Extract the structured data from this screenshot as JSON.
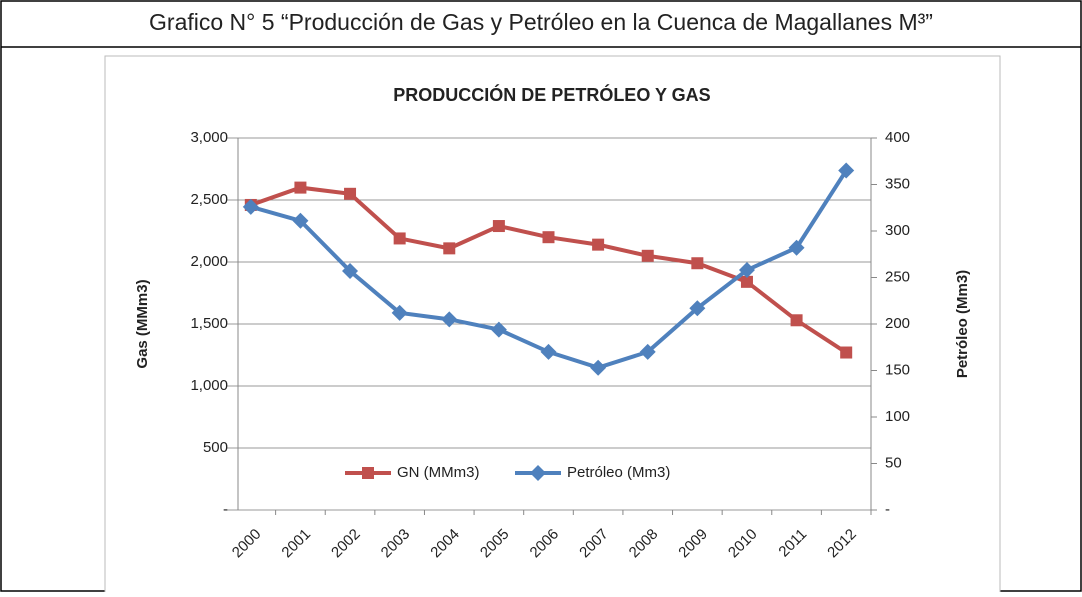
{
  "header": {
    "title": "Grafico N° 5  “Producción de Gas y Petróleo en la Cuenca de Magallanes M³”"
  },
  "chart_data": {
    "type": "line",
    "title": "PRODUCCIÓN DE PETRÓLEO Y GAS",
    "y_label": "Gas (MMm3)",
    "y2_label": "Petróleo (Mm3)",
    "categories": [
      "2000",
      "2001",
      "2002",
      "2003",
      "2004",
      "2005",
      "2006",
      "2007",
      "2008",
      "2009",
      "2010",
      "2011",
      "2012"
    ],
    "series": [
      {
        "name": "GN (MMm3)",
        "color": "#c0504d",
        "marker": "square",
        "values": [
          2460,
          2600,
          2550,
          2190,
          2110,
          2290,
          2200,
          2140,
          2050,
          1990,
          1840,
          1530,
          1270
        ]
      },
      {
        "name": "Petróleo (Mm3)",
        "color": "#4f81bd",
        "marker": "diamond",
        "axis": "y2",
        "values": [
          326,
          311,
          257,
          212,
          205,
          194,
          170,
          153,
          170,
          217,
          258,
          282,
          365
        ]
      }
    ],
    "ylim": [
      0,
      3000
    ],
    "yticks": [
      {
        "value": 0,
        "label": "-"
      },
      500,
      {
        "value": 1000,
        "label": "1,000"
      },
      {
        "value": 1500,
        "label": "1,500"
      },
      {
        "value": 2000,
        "label": "2,000"
      },
      {
        "value": 2500,
        "label": "2,500"
      },
      {
        "value": 3000,
        "label": "3,000"
      }
    ],
    "y2lim": [
      0,
      400
    ],
    "y2ticks": [
      {
        "value": 0,
        "label": "-"
      },
      50,
      100,
      150,
      200,
      250,
      300,
      350,
      400
    ],
    "grid": true,
    "legend": "bottom"
  }
}
